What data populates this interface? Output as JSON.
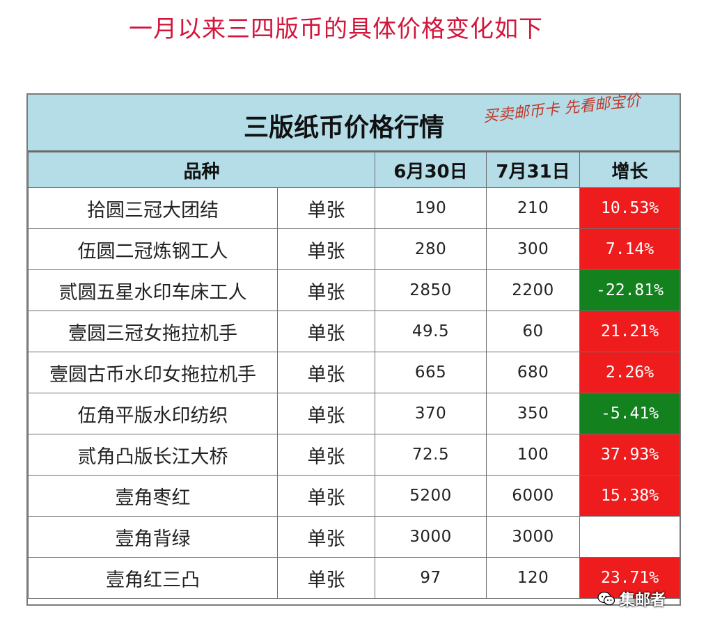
{
  "heading": "一月以来三四版币的具体价格变化如下",
  "table": {
    "title": "三版纸币价格行情",
    "slogan": "买卖邮币卡 先看邮宝价",
    "headers": {
      "variety": "品种",
      "date1": "6月30日",
      "date2": "7月31日",
      "growth": "增长"
    },
    "rows": [
      {
        "name": "拾圆三冠大团结",
        "unit": "单张",
        "p1": "190",
        "p2": "210",
        "growth": "10.53%",
        "trend": "up"
      },
      {
        "name": "伍圆二冠炼钢工人",
        "unit": "单张",
        "p1": "280",
        "p2": "300",
        "growth": "7.14%",
        "trend": "up"
      },
      {
        "name": "贰圆五星水印车床工人",
        "unit": "单张",
        "p1": "2850",
        "p2": "2200",
        "growth": "-22.81%",
        "trend": "down"
      },
      {
        "name": "壹圆三冠女拖拉机手",
        "unit": "单张",
        "p1": "49.5",
        "p2": "60",
        "growth": "21.21%",
        "trend": "up"
      },
      {
        "name": "壹圆古币水印女拖拉机手",
        "unit": "单张",
        "p1": "665",
        "p2": "680",
        "growth": "2.26%",
        "trend": "up"
      },
      {
        "name": "伍角平版水印纺织",
        "unit": "单张",
        "p1": "370",
        "p2": "350",
        "growth": "-5.41%",
        "trend": "down"
      },
      {
        "name": "贰角凸版长江大桥",
        "unit": "单张",
        "p1": "72.5",
        "p2": "100",
        "growth": "37.93%",
        "trend": "up"
      },
      {
        "name": "壹角枣红",
        "unit": "单张",
        "p1": "5200",
        "p2": "6000",
        "growth": "15.38%",
        "trend": "up"
      },
      {
        "name": "壹角背绿",
        "unit": "单张",
        "p1": "3000",
        "p2": "3000",
        "growth": "",
        "trend": "none"
      },
      {
        "name": "壹角红三凸",
        "unit": "单张",
        "p1": "97",
        "p2": "120",
        "growth": "23.71%",
        "trend": "up"
      }
    ]
  },
  "watermark": {
    "icon": "wechat-icon",
    "text": "集邮者"
  },
  "colors": {
    "heading": "#d2163c",
    "header_bg": "#b4dde8",
    "up": "#ee1c1c",
    "down": "#12811e"
  }
}
